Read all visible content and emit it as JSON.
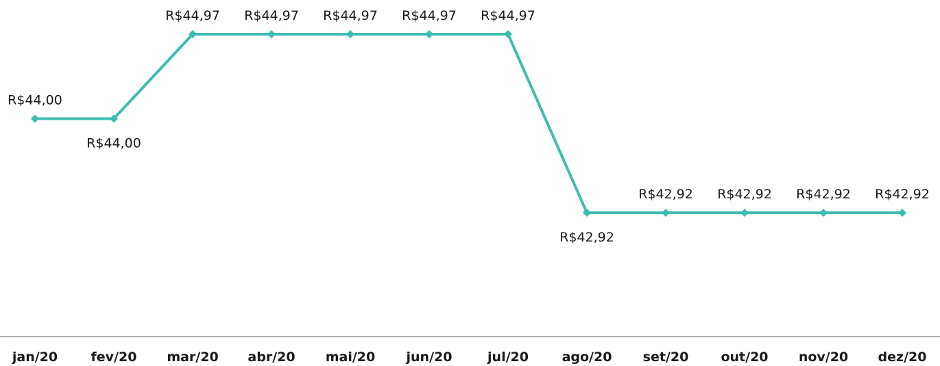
{
  "chart_data": {
    "type": "line",
    "title": "",
    "xlabel": "",
    "ylabel": "",
    "categories": [
      "jan/20",
      "fev/20",
      "mar/20",
      "abr/20",
      "mai/20",
      "jun/20",
      "jul/20",
      "ago/20",
      "set/20",
      "out/20",
      "nov/20",
      "dez/20"
    ],
    "series": [
      {
        "values": [
          44.0,
          44.0,
          44.97,
          44.97,
          44.97,
          44.97,
          44.97,
          42.92,
          42.92,
          42.92,
          42.92,
          42.92
        ],
        "labels": [
          "R$44,00",
          "R$44,00",
          "R$44,97",
          "R$44,97",
          "R$44,97",
          "R$44,97",
          "R$44,97",
          "R$42,92",
          "R$42,92",
          "R$42,92",
          "R$42,92",
          "R$42,92"
        ],
        "label_positions": [
          "above",
          "below",
          "above",
          "above",
          "above",
          "above",
          "above",
          "below",
          "above",
          "above",
          "above",
          "above"
        ],
        "color": "#3dbdb0"
      }
    ],
    "axis_color": "#999999",
    "grid": false,
    "legend": "none"
  }
}
